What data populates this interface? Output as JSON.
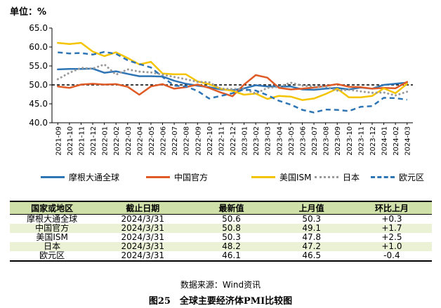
{
  "unit_label": "单位：%",
  "chart_data": {
    "type": "line",
    "ylim": [
      40.0,
      65.0
    ],
    "yticks": [
      "40.0",
      "45.0",
      "50.0",
      "55.0",
      "60.0",
      "65.0"
    ],
    "x": [
      "2021-09",
      "2021-10",
      "2021-11",
      "2021-12",
      "2022-01",
      "2022-02",
      "2022-03",
      "2022-04",
      "2022-05",
      "2022-06",
      "2022-07",
      "2022-08",
      "2022-09",
      "2022-10",
      "2022-11",
      "2022-12",
      "2023-01",
      "2023-02",
      "2023-03",
      "2023-04",
      "2023-05",
      "2023-06",
      "2023-07",
      "2023-08",
      "2023-09",
      "2023-10",
      "2023-11",
      "2023-12",
      "2024-01",
      "2024-02",
      "2024-03"
    ],
    "reference_line": 50,
    "series": [
      {
        "name": "摩根大通全球",
        "color": "#2e75b6",
        "style": "solid",
        "values": [
          54.1,
          54.2,
          54.2,
          54.3,
          53.2,
          53.6,
          52.9,
          52.3,
          52.3,
          52.2,
          51.1,
          50.3,
          49.8,
          49.4,
          48.8,
          48.6,
          49.1,
          49.9,
          49.6,
          49.6,
          49.6,
          48.8,
          48.7,
          49.0,
          49.2,
          48.8,
          49.3,
          49.0,
          50.0,
          50.3,
          50.6
        ]
      },
      {
        "name": "中国官方",
        "color": "#e05a26",
        "style": "solid",
        "values": [
          49.6,
          49.2,
          50.1,
          50.3,
          50.1,
          50.2,
          49.5,
          47.4,
          49.6,
          50.2,
          49.0,
          49.4,
          50.1,
          49.2,
          48.0,
          47.0,
          50.1,
          52.6,
          51.9,
          49.2,
          48.8,
          49.0,
          49.3,
          49.7,
          50.2,
          49.5,
          49.4,
          49.0,
          49.2,
          49.1,
          50.8
        ]
      },
      {
        "name": "美国ISM",
        "color": "#f5c400",
        "style": "solid",
        "values": [
          61.1,
          60.8,
          61.1,
          58.8,
          57.6,
          58.6,
          57.1,
          55.4,
          56.1,
          53.0,
          52.8,
          52.8,
          50.9,
          50.2,
          49.0,
          48.4,
          47.4,
          47.7,
          46.3,
          47.1,
          46.9,
          46.0,
          46.4,
          47.6,
          49.0,
          46.7,
          46.7,
          47.1,
          49.1,
          47.8,
          50.3
        ]
      },
      {
        "name": "日本",
        "color": "#9a9a9a",
        "style": "dotted",
        "values": [
          51.5,
          53.2,
          54.5,
          54.3,
          55.4,
          52.7,
          54.1,
          53.5,
          53.3,
          52.7,
          52.1,
          51.5,
          50.8,
          50.7,
          49.0,
          48.9,
          48.9,
          47.7,
          49.2,
          49.5,
          50.6,
          49.8,
          49.6,
          49.6,
          48.5,
          48.7,
          48.3,
          47.9,
          48.0,
          47.2,
          48.2
        ]
      },
      {
        "name": "欧元区",
        "color": "#2e75b6",
        "style": "dashed",
        "values": [
          58.6,
          58.3,
          58.4,
          58.0,
          58.7,
          58.2,
          56.5,
          55.5,
          54.6,
          52.1,
          49.8,
          49.6,
          48.4,
          46.4,
          47.1,
          47.8,
          48.8,
          48.5,
          47.3,
          45.8,
          44.8,
          43.4,
          42.7,
          43.5,
          43.4,
          43.1,
          44.2,
          44.4,
          46.6,
          46.5,
          46.1
        ]
      }
    ]
  },
  "table": {
    "headers": [
      "国家或地区",
      "截止日期",
      "最新值",
      "上月值",
      "环比上月"
    ],
    "rows": [
      [
        "摩根大通全球",
        "2024/3/31",
        "50.6",
        "50.3",
        "+0.3"
      ],
      [
        "中国官方",
        "2024/3/31",
        "50.8",
        "49.1",
        "+1.7"
      ],
      [
        "美国ISM",
        "2024/3/31",
        "50.3",
        "47.8",
        "+2.5"
      ],
      [
        "日本",
        "2024/3/31",
        "48.2",
        "47.2",
        "+1.0"
      ],
      [
        "欧元区",
        "2024/3/31",
        "46.1",
        "46.5",
        "-0.4"
      ]
    ]
  },
  "source_note": "数据来源：Wind资讯",
  "figure_caption": "图25　全球主要经济体PMI比较图"
}
